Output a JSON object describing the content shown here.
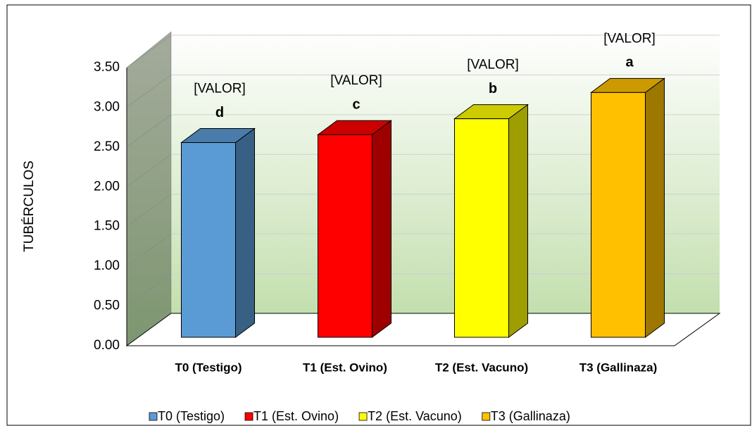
{
  "chart_data": {
    "type": "bar3d",
    "y_label": "TUBÉRCULOS",
    "categories": [
      "T0 (Testigo)",
      "T1 (Est. Ovino)",
      "T2 (Est. Vacuno)",
      "T3 (Gallinaza)"
    ],
    "series": [
      {
        "name": "T0 (Testigo)",
        "color": "#5b9bd5"
      },
      {
        "name": "T1 (Est. Ovino)",
        "color": "#ff0000"
      },
      {
        "name": "T2 (Est. Vacuno)",
        "color": "#ffff00"
      },
      {
        "name": "T3 (Gallinaza)",
        "color": "#ffc000"
      }
    ],
    "values": [
      2.45,
      2.55,
      2.75,
      3.08
    ],
    "data_labels": [
      "[VALOR]",
      "[VALOR]",
      "[VALOR]",
      "[VALOR]"
    ],
    "letters": [
      "d",
      "c",
      "b",
      "a"
    ],
    "ylim": [
      0,
      3.5
    ],
    "yticks": [
      {
        "value": 0,
        "label": "0.00"
      },
      {
        "value": 0.5,
        "label": "0.50"
      },
      {
        "value": 1,
        "label": "1.00"
      },
      {
        "value": 1.5,
        "label": "1.50"
      },
      {
        "value": 2,
        "label": "2.00"
      },
      {
        "value": 2.5,
        "label": "2.50"
      },
      {
        "value": 3,
        "label": "3.00"
      },
      {
        "value": 3.5,
        "label": "3.50"
      }
    ],
    "grid": true,
    "legend": "bottom"
  }
}
